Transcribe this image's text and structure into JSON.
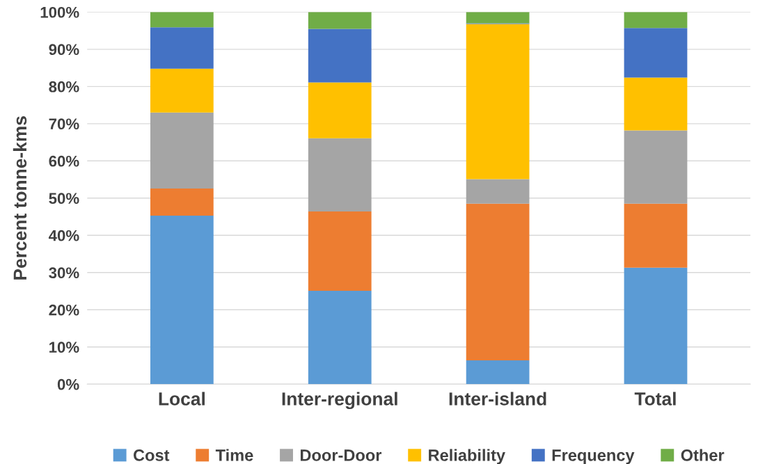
{
  "chart_data": {
    "type": "bar",
    "stacked": true,
    "ylabel": "Percent tonne-kms",
    "categories": [
      "Local",
      "Inter-regional",
      "Inter-island",
      "Total"
    ],
    "series": [
      {
        "name": "Cost",
        "color": "#5b9bd5",
        "values": [
          45.3,
          25.1,
          6.4,
          31.3
        ]
      },
      {
        "name": "Time",
        "color": "#ed7d31",
        "values": [
          7.3,
          21.3,
          42.1,
          17.2
        ]
      },
      {
        "name": "Door-Door",
        "color": "#a5a5a5",
        "values": [
          20.4,
          19.7,
          6.6,
          19.7
        ]
      },
      {
        "name": "Reliability",
        "color": "#ffc000",
        "values": [
          11.8,
          15.0,
          41.7,
          14.2
        ]
      },
      {
        "name": "Frequency",
        "color": "#4472c4",
        "values": [
          11.1,
          14.4,
          0.2,
          13.3
        ]
      },
      {
        "name": "Other",
        "color": "#70ad47",
        "values": [
          4.1,
          4.5,
          3.0,
          4.3
        ]
      }
    ],
    "ylim": [
      0,
      100
    ],
    "yticks": [
      {
        "value": 0,
        "label": "0%"
      },
      {
        "value": 10,
        "label": "10%"
      },
      {
        "value": 20,
        "label": "20%"
      },
      {
        "value": 30,
        "label": "30%"
      },
      {
        "value": 40,
        "label": "40%"
      },
      {
        "value": 50,
        "label": "50%"
      },
      {
        "value": 60,
        "label": "60%"
      },
      {
        "value": 70,
        "label": "70%"
      },
      {
        "value": 80,
        "label": "80%"
      },
      {
        "value": 90,
        "label": "90%"
      },
      {
        "value": 100,
        "label": "100%"
      }
    ],
    "grid": "y",
    "legend": "bottom"
  }
}
